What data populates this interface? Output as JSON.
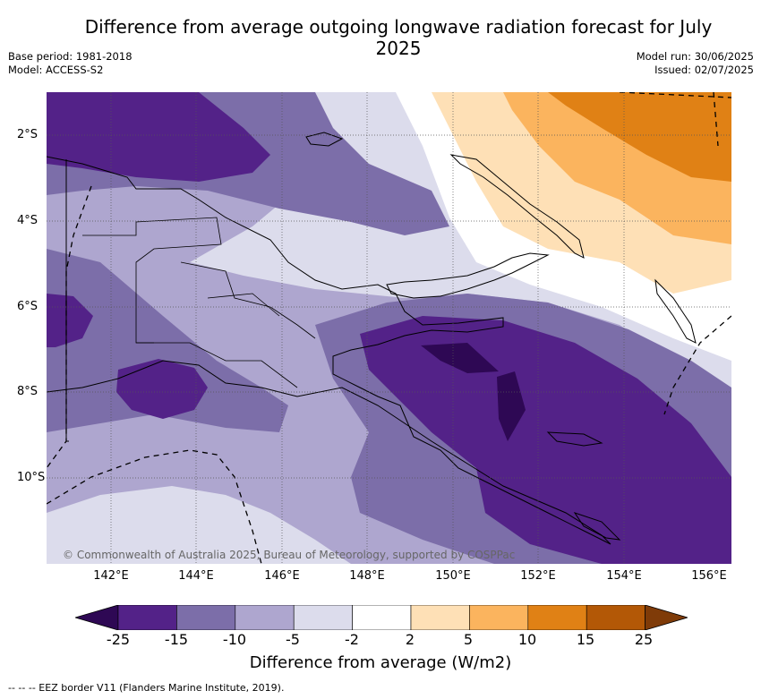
{
  "title": "Difference from average outgoing longwave radiation forecast for July 2025",
  "meta_left": {
    "base_period": "Base period: 1981-2018",
    "model": "Model: ACCESS-S2"
  },
  "meta_right": {
    "model_run": "Model run: 30/06/2025",
    "issued": "Issued: 02/07/2025"
  },
  "copyright": "© Commonwealth of Australia 2025, Bureau of Meteorology, supported by COSPPac",
  "x_ticks": [
    "142°E",
    "144°E",
    "146°E",
    "148°E",
    "150°E",
    "152°E",
    "154°E",
    "156°E"
  ],
  "y_ticks": [
    "2°S",
    "4°S",
    "6°S",
    "8°S",
    "10°S"
  ],
  "colorbar": {
    "title": "Difference from average (W/m2)",
    "labels": [
      "-25",
      "-15",
      "-10",
      "-5",
      "-2",
      "2",
      "5",
      "10",
      "15",
      "25"
    ],
    "colors": [
      "#2e0854",
      "#532288",
      "#7c6ea9",
      "#aea6cf",
      "#dcdcec",
      "#ffffff",
      "#fee0b6",
      "#fbb45e",
      "#e08115",
      "#b35806",
      "#7f3b08"
    ]
  },
  "legend_footnote": "--  --  -- EEZ border V11 (Flanders Marine Institute, 2019)."
}
